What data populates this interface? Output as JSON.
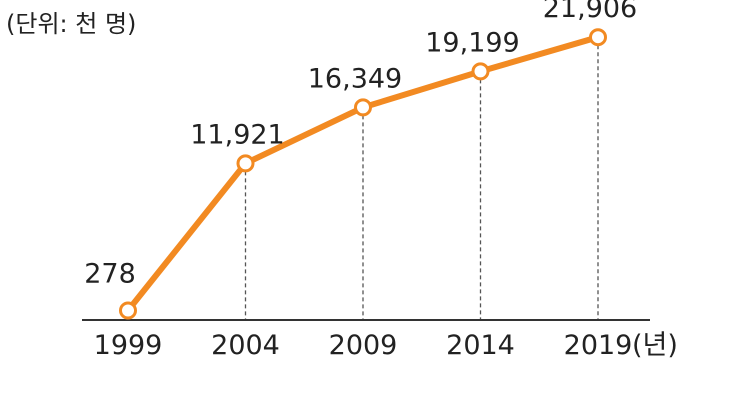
{
  "chart_data": {
    "type": "line",
    "unit_label": "(단위: 천 명)",
    "x": [
      "1999",
      "2004",
      "2009",
      "2014",
      "2019"
    ],
    "x_unit_suffix": "(년)",
    "series": [
      {
        "values": [
          278,
          11921,
          16349,
          19199,
          21906
        ]
      }
    ],
    "data_labels": [
      "278",
      "11,921",
      "16,349",
      "19,199",
      "21,906"
    ],
    "ylim": [
      0,
      22000
    ],
    "grid": false,
    "colors": {
      "line": "#f28a22",
      "marker_fill": "#ffffff",
      "axis": "#333333",
      "guide": "#555555"
    }
  }
}
